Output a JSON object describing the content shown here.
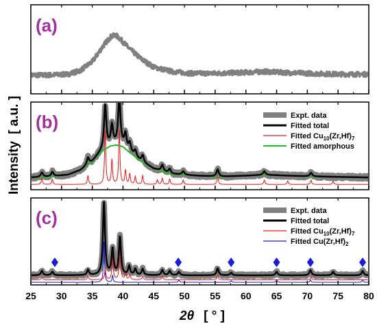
{
  "chart_data": {
    "type": "line",
    "ylabel": "Intensity",
    "ylabel_unit": "[ a.u. ]",
    "xlabel_symbol": "2θ",
    "xlabel_unit": "[ ° ]",
    "x_range": [
      25,
      80
    ],
    "x_ticks": [
      25,
      30,
      35,
      40,
      45,
      50,
      55,
      60,
      65,
      70,
      75,
      80
    ],
    "grid": false,
    "colors": {
      "panel_label": "#a0309a",
      "expt": "#808080",
      "total": "#000000",
      "cu10": "#ee1111",
      "amorphous": "#22bb22",
      "cuzrhf2": "#1111ee",
      "marker": "#1a1adc"
    },
    "panels": [
      {
        "label": "(a)",
        "ylim": [
          0,
          1
        ],
        "legend": [],
        "series": [
          {
            "key": "expt",
            "style": "thick-gray",
            "points": [
              [
                25,
                0.07
              ],
              [
                28,
                0.07
              ],
              [
                31,
                0.08
              ],
              [
                33,
                0.12
              ],
              [
                35,
                0.22
              ],
              [
                36,
                0.32
              ],
              [
                37,
                0.42
              ],
              [
                38,
                0.5
              ],
              [
                38.8,
                0.52
              ],
              [
                39.5,
                0.48
              ],
              [
                41,
                0.37
              ],
              [
                43,
                0.25
              ],
              [
                45,
                0.16
              ],
              [
                48,
                0.11
              ],
              [
                51,
                0.09
              ],
              [
                55,
                0.09
              ],
              [
                60,
                0.1
              ],
              [
                63,
                0.11
              ],
              [
                66,
                0.1
              ],
              [
                70,
                0.09
              ],
              [
                75,
                0.08
              ],
              [
                80,
                0.08
              ]
            ]
          }
        ]
      },
      {
        "label": "(b)",
        "ylim": [
          0,
          1
        ],
        "legend_position": "top-right",
        "legend": [
          {
            "key": "expt",
            "text": "Expt. data",
            "sub": ""
          },
          {
            "key": "total",
            "text": "Fitted total",
            "sub": ""
          },
          {
            "key": "cu10",
            "text": "Fitted Cu",
            "sub": "10",
            "after": "(Zr,Hf)",
            "sub2": "7"
          },
          {
            "key": "amorphous",
            "text": "Fitted amorphous",
            "sub": ""
          }
        ],
        "amorphous_curve": [
          [
            25,
            0.04
          ],
          [
            28,
            0.05
          ],
          [
            31,
            0.07
          ],
          [
            33,
            0.12
          ],
          [
            35,
            0.22
          ],
          [
            36,
            0.3
          ],
          [
            37,
            0.36
          ],
          [
            38,
            0.4
          ],
          [
            39,
            0.41
          ],
          [
            40,
            0.39
          ],
          [
            41,
            0.33
          ],
          [
            43,
            0.22
          ],
          [
            45,
            0.14
          ],
          [
            48,
            0.08
          ],
          [
            52,
            0.06
          ],
          [
            56,
            0.05
          ],
          [
            60,
            0.06
          ],
          [
            63,
            0.07
          ],
          [
            67,
            0.06
          ],
          [
            72,
            0.05
          ],
          [
            80,
            0.04
          ]
        ],
        "cu10_baseline": -0.06,
        "cu10_peaks": [
          [
            26.8,
            0.07
          ],
          [
            28.5,
            0.06
          ],
          [
            34.3,
            0.1
          ],
          [
            37.1,
            0.62
          ],
          [
            38.2,
            0.28
          ],
          [
            39.4,
            0.62
          ],
          [
            40.4,
            0.16
          ],
          [
            41.1,
            0.12
          ],
          [
            42.0,
            0.09
          ],
          [
            43.2,
            0.1
          ],
          [
            45.6,
            0.05
          ],
          [
            46.4,
            0.07
          ],
          [
            47.6,
            0.06
          ],
          [
            49.8,
            0.05
          ],
          [
            55.4,
            0.1
          ],
          [
            63.0,
            0.05
          ],
          [
            66.8,
            0.04
          ],
          [
            70.6,
            0.05
          ],
          [
            74.2,
            0.04
          ]
        ],
        "total_peaks": [
          [
            26.8,
            0.05
          ],
          [
            28.5,
            0.05
          ],
          [
            34.3,
            0.08
          ],
          [
            37.1,
            0.5
          ],
          [
            38.2,
            0.22
          ],
          [
            39.4,
            0.55
          ],
          [
            40.4,
            0.16
          ],
          [
            41.1,
            0.1
          ],
          [
            42.0,
            0.07
          ],
          [
            43.2,
            0.08
          ],
          [
            46.4,
            0.07
          ],
          [
            47.6,
            0.05
          ],
          [
            49.8,
            0.04
          ],
          [
            55.4,
            0.08
          ],
          [
            63.0,
            0.04
          ],
          [
            70.6,
            0.04
          ]
        ]
      },
      {
        "label": "(c)",
        "ylim": [
          0,
          1
        ],
        "legend_position": "top-right",
        "legend": [
          {
            "key": "expt",
            "text": "Expt. data",
            "sub": ""
          },
          {
            "key": "total",
            "text": "Fitted total",
            "sub": ""
          },
          {
            "key": "cu10",
            "text": "Fitted Cu",
            "sub": "10",
            "after": "(Zr,Hf)",
            "sub2": "7"
          },
          {
            "key": "cuzrhf2",
            "text": "Fitted Cu(Zr,Hf)",
            "sub": "2"
          }
        ],
        "base": 0.11,
        "cu10_base": 0.06,
        "cuzrhf2_base": 0.03,
        "total_peaks": [
          [
            26.8,
            0.05
          ],
          [
            28.5,
            0.04
          ],
          [
            34.3,
            0.06
          ],
          [
            36.9,
            0.84
          ],
          [
            38.3,
            0.3
          ],
          [
            39.5,
            0.44
          ],
          [
            41.0,
            0.1
          ],
          [
            42.0,
            0.07
          ],
          [
            43.2,
            0.07
          ],
          [
            46.4,
            0.06
          ],
          [
            47.6,
            0.05
          ],
          [
            49.1,
            0.04
          ],
          [
            55.4,
            0.08
          ],
          [
            57.6,
            0.03
          ],
          [
            65.0,
            0.04
          ],
          [
            70.5,
            0.06
          ],
          [
            74.2,
            0.04
          ],
          [
            79.0,
            0.05
          ]
        ],
        "cu10_peaks": [
          [
            26.8,
            0.03
          ],
          [
            34.3,
            0.04
          ],
          [
            37.1,
            0.12
          ],
          [
            38.3,
            0.28
          ],
          [
            39.5,
            0.42
          ],
          [
            40.4,
            0.08
          ],
          [
            41.1,
            0.06
          ],
          [
            43.2,
            0.04
          ],
          [
            46.4,
            0.04
          ],
          [
            55.4,
            0.05
          ],
          [
            70.6,
            0.03
          ]
        ],
        "cuzrhf2_peaks": [
          [
            36.9,
            0.48
          ],
          [
            38.3,
            0.08
          ],
          [
            49.1,
            0.03
          ],
          [
            57.6,
            0.02
          ],
          [
            65.0,
            0.03
          ],
          [
            70.5,
            0.03
          ],
          [
            79.0,
            0.03
          ]
        ],
        "markers_x": [
          28.9,
          49.0,
          57.6,
          65.0,
          70.5,
          79.0
        ],
        "markers_y": 0.26
      }
    ]
  }
}
